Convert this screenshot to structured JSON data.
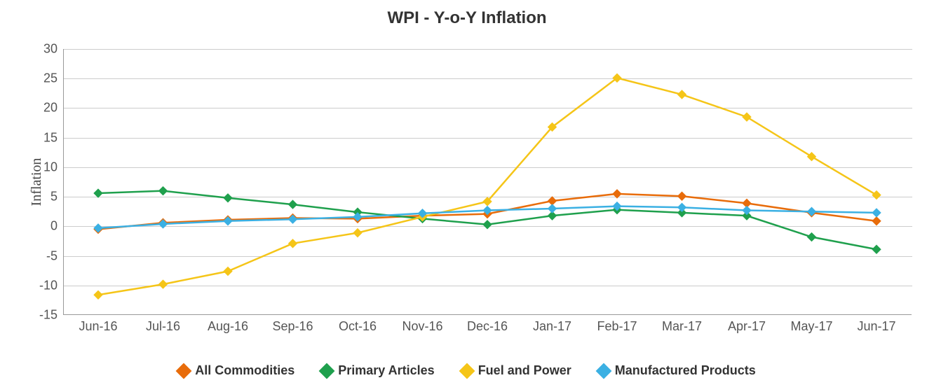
{
  "chart": {
    "type": "line",
    "title": "WPI - Y-o-Y Inflation",
    "title_fontsize": 24,
    "title_color": "#333333",
    "ylabel": "Inflation",
    "ylabel_fontsize": 20,
    "background_color": "#ffffff",
    "grid_color": "#cccccc",
    "axis_color": "#999999",
    "tick_color": "#555555",
    "tick_fontsize": 18,
    "categories": [
      "Jun-16",
      "Jul-16",
      "Aug-16",
      "Sep-16",
      "Oct-16",
      "Nov-16",
      "Dec-16",
      "Jan-17",
      "Feb-17",
      "Mar-17",
      "Apr-17",
      "May-17",
      "Jun-17"
    ],
    "ylim": [
      -15,
      30
    ],
    "ytick_step": 5,
    "yticks": [
      -15,
      -10,
      -5,
      0,
      5,
      10,
      15,
      20,
      25,
      30
    ],
    "line_width": 2.5,
    "marker_size": 8,
    "marker_shape": "diamond",
    "series": [
      {
        "name": "All Commodities",
        "color": "#e86c0a",
        "marker_fill": "#e86c0a",
        "values": [
          -0.5,
          0.6,
          1.1,
          1.4,
          1.3,
          1.8,
          2.1,
          4.3,
          5.5,
          5.1,
          3.9,
          2.3,
          0.9
        ]
      },
      {
        "name": "Primary Articles",
        "color": "#1fa04d",
        "marker_fill": "#1fa04d",
        "values": [
          5.6,
          6.0,
          4.8,
          3.7,
          2.4,
          1.3,
          0.3,
          1.8,
          2.8,
          2.3,
          1.8,
          -1.8,
          -3.9
        ]
      },
      {
        "name": "Fuel and Power",
        "color": "#f5c518",
        "marker_fill": "#f5c518",
        "values": [
          -11.6,
          -9.8,
          -7.6,
          -2.9,
          -1.1,
          1.6,
          4.2,
          16.8,
          25.1,
          22.3,
          18.5,
          11.8,
          5.3
        ]
      },
      {
        "name": "Manufactured Products",
        "color": "#3bb0e3",
        "marker_fill": "#3bb0e3",
        "values": [
          -0.3,
          0.4,
          0.9,
          1.2,
          1.6,
          2.2,
          2.7,
          3.0,
          3.4,
          3.2,
          2.7,
          2.5,
          2.3
        ]
      }
    ],
    "legend_fontsize": 18,
    "legend_fontweight": 700
  }
}
